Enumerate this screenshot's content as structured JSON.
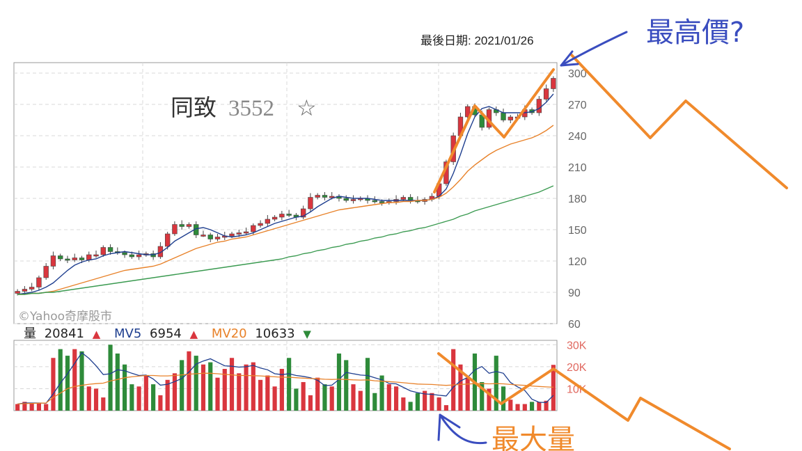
{
  "last_date_label": "最後日期: 2021/01/26",
  "stock_name": "同致",
  "stock_code": "3552",
  "star_icon": "☆",
  "watermark": "©Yahoo奇摩股市",
  "annotations": {
    "max_price": "最高價?",
    "max_volume": "最大量"
  },
  "volume_legend": {
    "vol_label": "量",
    "vol_value": "20841",
    "mv5_label": "MV5",
    "mv5_value": "6954",
    "mv20_label": "MV20",
    "mv20_value": "10633",
    "up_glyph": "▲",
    "down_glyph": "▼"
  },
  "colors": {
    "up": "#d9363e",
    "down": "#2e8b3a",
    "mv5": "#1f3f8f",
    "mv20": "#e8822a",
    "mv60": "#3a9a50",
    "annot_blue": "#3a4dbf",
    "annot_orange": "#f08a2c",
    "axis_text": "#666666",
    "vol_axis_text": "#e0685f"
  },
  "chart_data": [
    {
      "type": "candlestick",
      "y_ticks": [
        60,
        90,
        120,
        150,
        180,
        210,
        240,
        270,
        300
      ],
      "ylim": [
        60,
        310
      ],
      "series": [
        {
          "name": "close",
          "values": [
            91,
            93,
            95,
            104,
            115,
            125,
            122,
            121,
            123,
            121,
            126,
            126,
            133,
            129,
            128,
            126,
            124,
            126,
            127,
            124,
            134,
            146,
            155,
            153,
            155,
            145,
            145,
            141,
            143,
            144,
            146,
            147,
            148,
            154,
            156,
            160,
            162,
            165,
            164,
            162,
            170,
            181,
            183,
            181,
            182,
            180,
            178,
            179,
            180,
            178,
            177,
            176,
            177,
            179,
            181,
            178,
            177,
            179,
            182,
            194,
            215,
            240,
            258,
            268,
            260,
            248,
            265,
            262,
            255,
            258,
            258,
            265,
            262,
            275,
            285,
            295
          ]
        },
        {
          "name": "MV5",
          "values": [
            88,
            89,
            90,
            92,
            95,
            99,
            105,
            111,
            116,
            119,
            121,
            122,
            125,
            127,
            128,
            129,
            128,
            127,
            126,
            126,
            128,
            133,
            139,
            143,
            147,
            151,
            152,
            150,
            147,
            144,
            143,
            144,
            145,
            147,
            150,
            153,
            156,
            158,
            160,
            162,
            163,
            167,
            172,
            176,
            180,
            182,
            181,
            180,
            180,
            180,
            179,
            178,
            178,
            178,
            178,
            178,
            178,
            178,
            179,
            182,
            189,
            204,
            222,
            242,
            258,
            266,
            268,
            265,
            262,
            262,
            262,
            262,
            263,
            266,
            272,
            280
          ]
        },
        {
          "name": "MV20",
          "values": [
            88,
            88,
            89,
            89,
            90,
            91,
            93,
            95,
            97,
            99,
            101,
            103,
            105,
            107,
            109,
            111,
            112,
            113,
            114,
            115,
            117,
            120,
            123,
            126,
            129,
            132,
            134,
            136,
            138,
            139,
            141,
            142,
            143,
            145,
            147,
            149,
            151,
            153,
            155,
            157,
            159,
            161,
            163,
            165,
            167,
            169,
            170,
            171,
            172,
            173,
            174,
            175,
            176,
            176,
            177,
            177,
            178,
            178,
            179,
            181,
            185,
            191,
            198,
            206,
            212,
            217,
            222,
            226,
            229,
            232,
            234,
            236,
            238,
            241,
            245,
            250
          ]
        },
        {
          "name": "MV60",
          "values": [
            88,
            88,
            89,
            89,
            90,
            90,
            91,
            92,
            93,
            94,
            95,
            96,
            97,
            98,
            99,
            100,
            101,
            102,
            103,
            104,
            105,
            106,
            107,
            108,
            109,
            110,
            111,
            112,
            113,
            114,
            115,
            116,
            117,
            118,
            119,
            120,
            121,
            122,
            124,
            125,
            127,
            128,
            130,
            131,
            133,
            134,
            136,
            137,
            139,
            140,
            142,
            143,
            145,
            146,
            148,
            149,
            151,
            152,
            154,
            156,
            158,
            160,
            163,
            165,
            168,
            170,
            172,
            174,
            176,
            178,
            180,
            182,
            184,
            186,
            189,
            192
          ]
        }
      ]
    },
    {
      "type": "bar",
      "y_ticks": [
        "30K",
        "20K",
        "10K"
      ],
      "ylim": [
        0,
        32000
      ],
      "series": [
        {
          "name": "量",
          "values": [
            3000,
            4000,
            3500,
            3500,
            3000,
            24000,
            28000,
            25000,
            28000,
            27000,
            11000,
            10000,
            6000,
            30000,
            26000,
            21000,
            12000,
            11000,
            16000,
            12000,
            7000,
            14000,
            17000,
            23000,
            27000,
            25000,
            21000,
            22000,
            15000,
            19000,
            24000,
            17000,
            21000,
            22000,
            14000,
            16000,
            11000,
            19000,
            24000,
            10000,
            13000,
            7000,
            15000,
            12000,
            11000,
            26000,
            23000,
            12000,
            9000,
            24000,
            8000,
            16000,
            12000,
            11000,
            6000,
            4000,
            8000,
            9000,
            8000,
            6000,
            2500,
            28000,
            21000,
            15000,
            26000,
            13000,
            10000,
            25000,
            11000,
            5000,
            3000,
            3000,
            4000,
            4000,
            4500,
            20841
          ]
        },
        {
          "name": "MV5",
          "values": [
            3000,
            3500,
            3500,
            3500,
            3400,
            7600,
            12500,
            16800,
            21500,
            26400,
            23800,
            20400,
            16400,
            16800,
            18600,
            18200,
            17000,
            16000,
            16200,
            14400,
            11600,
            12000,
            13200,
            14600,
            17600,
            21200,
            22600,
            23600,
            22000,
            20400,
            20200,
            19800,
            20000,
            20600,
            19400,
            18600,
            16800,
            16400,
            16800,
            16000,
            15600,
            15000,
            13800,
            11400,
            11600,
            14200,
            17400,
            16800,
            16200,
            16000,
            15000,
            14000,
            12400,
            12200,
            10600,
            9000,
            8200,
            7600,
            7400,
            7000,
            6700,
            10700,
            13500,
            15100,
            18500,
            20100,
            17000,
            17800,
            17000,
            12800,
            10800,
            9200,
            5200,
            3800,
            3700,
            6954
          ]
        },
        {
          "name": "MV20",
          "values": [
            3000,
            3200,
            3300,
            3400,
            3500,
            6000,
            8000,
            10000,
            11000,
            11500,
            12000,
            12300,
            12500,
            13500,
            14200,
            15000,
            15400,
            15700,
            16000,
            16000,
            15800,
            15800,
            16000,
            16300,
            16600,
            16800,
            17000,
            17000,
            16800,
            16500,
            16300,
            16000,
            16000,
            15900,
            15800,
            15600,
            15400,
            15200,
            15200,
            15000,
            14800,
            14600,
            14500,
            14300,
            14200,
            14300,
            14200,
            14000,
            13900,
            14000,
            13600,
            13400,
            13200,
            13000,
            12700,
            12400,
            12100,
            12000,
            11900,
            11700,
            11500,
            11700,
            11900,
            12100,
            12300,
            12300,
            12200,
            12300,
            12200,
            11900,
            11700,
            11500,
            11200,
            11000,
            10800,
            10633
          ]
        }
      ]
    }
  ]
}
